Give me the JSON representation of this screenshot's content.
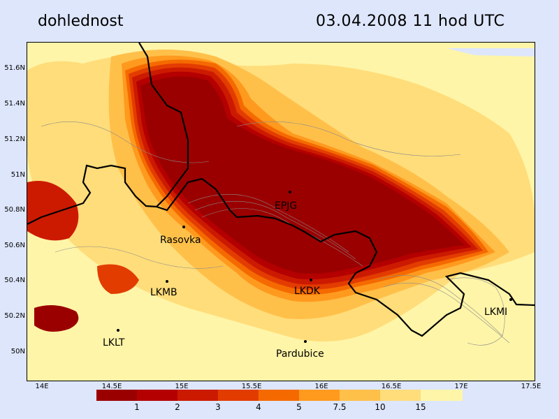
{
  "header": {
    "title": "dohlednost",
    "datetime": "03.04.2008   11 hod UTC"
  },
  "axes": {
    "y_ticks": [
      "51.6N",
      "51.4N",
      "51.2N",
      "51N",
      "50.8N",
      "50.6N",
      "50.4N",
      "50.2N",
      "50N"
    ],
    "x_ticks": [
      "14E",
      "14.5E",
      "15E",
      "15.5E",
      "16E",
      "16.5E",
      "17E",
      "17.5E"
    ]
  },
  "places": [
    {
      "name": "EPJG",
      "lon": 15.77,
      "lat": 50.9
    },
    {
      "name": "Rasovka",
      "lon": 15.0,
      "lat": 50.7
    },
    {
      "name": "LKMB",
      "lon": 14.9,
      "lat": 50.4
    },
    {
      "name": "LKDK",
      "lon": 15.92,
      "lat": 50.41
    },
    {
      "name": "LKMI",
      "lon": 17.35,
      "lat": 50.28
    },
    {
      "name": "LKLT",
      "lon": 14.52,
      "lat": 50.12
    },
    {
      "name": "Pardubice",
      "lon": 15.89,
      "lat": 50.07
    }
  ],
  "legend": {
    "colors": [
      "#9b0000",
      "#b40000",
      "#cc1a00",
      "#e33c00",
      "#f56a00",
      "#ff9a1e",
      "#ffc04a",
      "#ffdd7a",
      "#fff5a8"
    ],
    "labels": [
      "1",
      "2",
      "3",
      "4",
      "5",
      "7.5",
      "10",
      "15"
    ]
  }
}
